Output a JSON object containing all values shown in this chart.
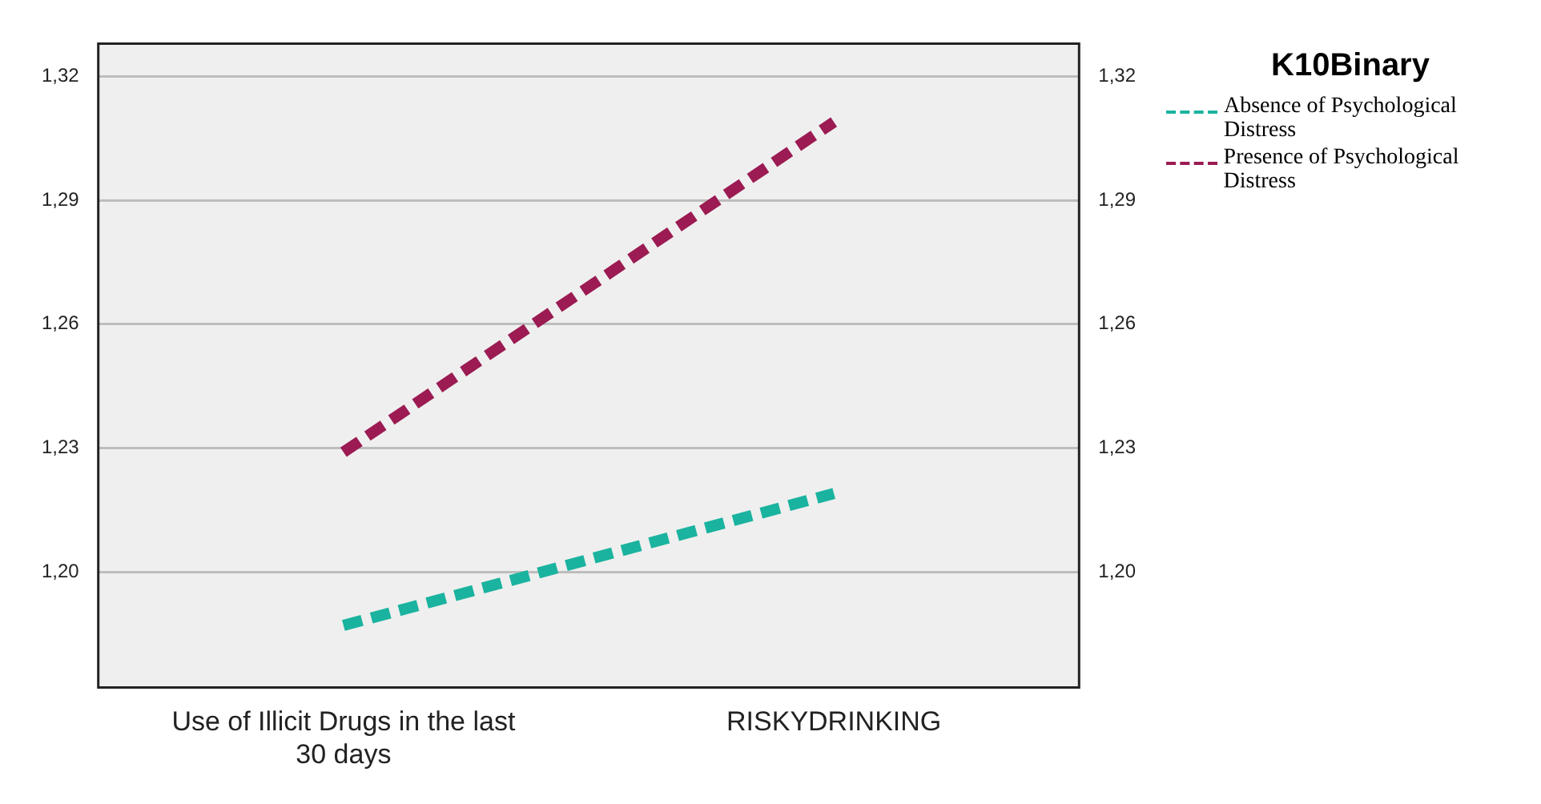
{
  "chart_data": {
    "type": "line",
    "categories": [
      "Use of Illicit Drugs in the last 30 days",
      "RISKYDRINKING"
    ],
    "series": [
      {
        "name": "Absence of Psychological Distress",
        "color": "#1ab39f",
        "values": [
          1.187,
          1.219
        ],
        "line_style": "dashed"
      },
      {
        "name": "Presence of Psychological Distress",
        "color": "#9b1b52",
        "values": [
          1.229,
          1.309
        ],
        "line_style": "dashed"
      }
    ],
    "legend_title": "K10Binary",
    "legend": "right",
    "grid": "y",
    "marker": "none",
    "ylim": [
      1.172,
      1.328
    ],
    "yticks": [
      {
        "value": 1.2,
        "label": "1,20"
      },
      {
        "value": 1.23,
        "label": "1,23"
      },
      {
        "value": 1.26,
        "label": "1,26"
      },
      {
        "value": 1.29,
        "label": "1,29"
      },
      {
        "value": 1.32,
        "label": "1,32"
      }
    ],
    "y2lim": [
      1.172,
      1.328
    ],
    "y2ticks": [
      {
        "value": 1.2,
        "label": "1,20"
      },
      {
        "value": 1.23,
        "label": "1,23"
      },
      {
        "value": 1.26,
        "label": "1,26"
      },
      {
        "value": 1.29,
        "label": "1,29"
      },
      {
        "value": 1.32,
        "label": "1,32"
      }
    ]
  }
}
